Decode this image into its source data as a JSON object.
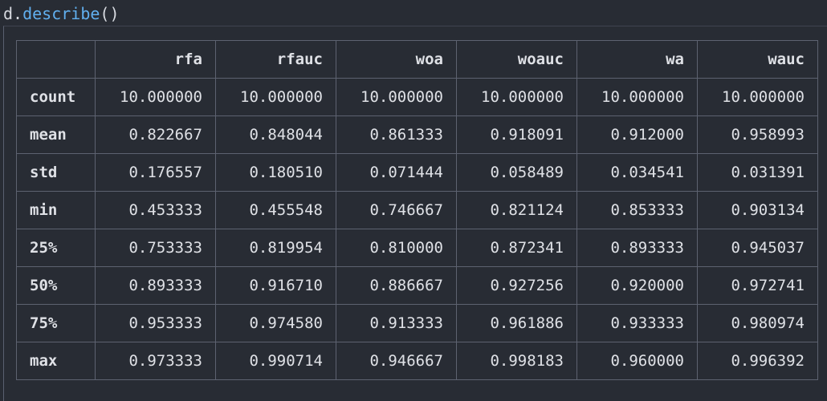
{
  "code": {
    "object": "d",
    "dot": ".",
    "method": "describe",
    "parens": "()"
  },
  "table": {
    "columns": [
      "rfa",
      "rfauc",
      "woa",
      "woauc",
      "wa",
      "wauc"
    ],
    "rows": [
      {
        "label": "count",
        "values": [
          "10.000000",
          "10.000000",
          "10.000000",
          "10.000000",
          "10.000000",
          "10.000000"
        ]
      },
      {
        "label": "mean",
        "values": [
          "0.822667",
          "0.848044",
          "0.861333",
          "0.918091",
          "0.912000",
          "0.958993"
        ]
      },
      {
        "label": "std",
        "values": [
          "0.176557",
          "0.180510",
          "0.071444",
          "0.058489",
          "0.034541",
          "0.031391"
        ]
      },
      {
        "label": "min",
        "values": [
          "0.453333",
          "0.455548",
          "0.746667",
          "0.821124",
          "0.853333",
          "0.903134"
        ]
      },
      {
        "label": "25%",
        "values": [
          "0.753333",
          "0.819954",
          "0.810000",
          "0.872341",
          "0.893333",
          "0.945037"
        ]
      },
      {
        "label": "50%",
        "values": [
          "0.893333",
          "0.916710",
          "0.886667",
          "0.927256",
          "0.920000",
          "0.972741"
        ]
      },
      {
        "label": "75%",
        "values": [
          "0.953333",
          "0.974580",
          "0.913333",
          "0.961886",
          "0.933333",
          "0.980974"
        ]
      },
      {
        "label": "max",
        "values": [
          "0.973333",
          "0.990714",
          "0.946667",
          "0.998183",
          "0.960000",
          "0.996392"
        ]
      }
    ]
  }
}
